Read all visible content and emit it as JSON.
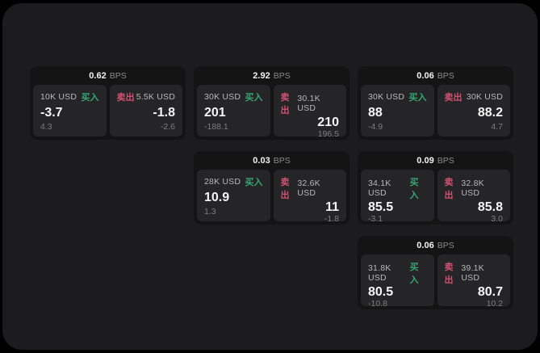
{
  "colors": {
    "background": "#000000",
    "panel_bg": "#1c1c1e",
    "card_bg": "#141414",
    "cell_bg": "#252527",
    "buy_green": "#36a671",
    "sell_red": "#cf5270"
  },
  "labels": {
    "bps_suffix": "BPS",
    "buy": "买入",
    "sell": "卖出"
  },
  "cards": [
    {
      "col": 0,
      "row": 0,
      "bps": "0.62",
      "buy": {
        "amount": "10K USD",
        "value": "-3.7",
        "delta": "4.3"
      },
      "sell": {
        "amount": "5.5K USD",
        "value": "-1.8",
        "delta": "-2.6"
      }
    },
    {
      "col": 1,
      "row": 0,
      "bps": "2.92",
      "buy": {
        "amount": "30K USD",
        "value": "201",
        "delta": "-188.1"
      },
      "sell": {
        "amount": "30.1K USD",
        "value": "210",
        "delta": "196.5"
      }
    },
    {
      "col": 2,
      "row": 0,
      "bps": "0.06",
      "buy": {
        "amount": "30K USD",
        "value": "88",
        "delta": "-4.9"
      },
      "sell": {
        "amount": "30K USD",
        "value": "88.2",
        "delta": "4.7"
      }
    },
    {
      "col": 1,
      "row": 1,
      "bps": "0.03",
      "buy": {
        "amount": "28K USD",
        "value": "10.9",
        "delta": "1.3"
      },
      "sell": {
        "amount": "32.6K USD",
        "value": "11",
        "delta": "-1.8"
      }
    },
    {
      "col": 2,
      "row": 1,
      "bps": "0.09",
      "buy": {
        "amount": "34.1K USD",
        "value": "85.5",
        "delta": "-3.1"
      },
      "sell": {
        "amount": "32.8K USD",
        "value": "85.8",
        "delta": "3.0"
      }
    },
    {
      "col": 2,
      "row": 2,
      "bps": "0.06",
      "buy": {
        "amount": "31.8K USD",
        "value": "80.5",
        "delta": "-10.8"
      },
      "sell": {
        "amount": "39.1K USD",
        "value": "80.7",
        "delta": "10.2"
      }
    }
  ]
}
